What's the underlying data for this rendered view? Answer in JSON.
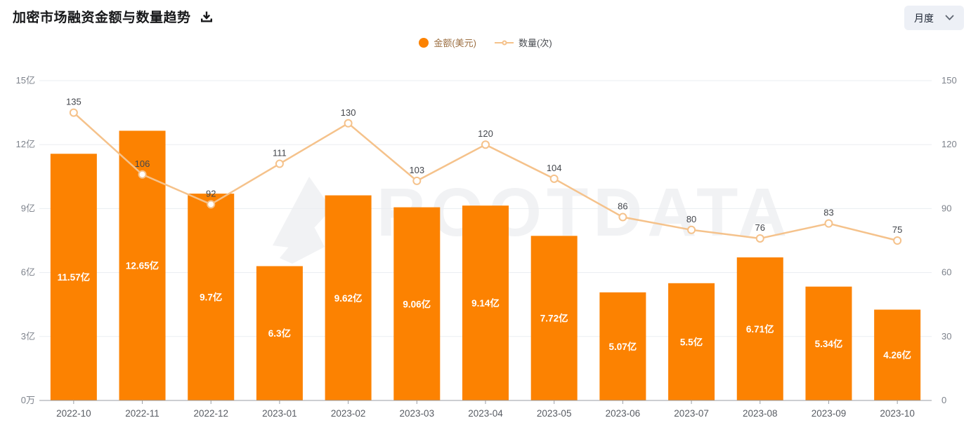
{
  "header": {
    "title": "加密市场融资金额与数量趋势",
    "period_selector": {
      "value": "月度"
    }
  },
  "legend": {
    "items": [
      {
        "label": "金额(美元)",
        "marker": "filled-circle",
        "color": "#fc8201",
        "label_color": "#9c6f42"
      },
      {
        "label": "数量(次)",
        "marker": "line-hollow-circle",
        "color": "#f5c28b",
        "label_color": "#4a4d52"
      }
    ]
  },
  "chart_data": {
    "type": "combo-bar-line",
    "title": "加密市场融资金额与数量趋势",
    "categories": [
      "2022-10",
      "2022-11",
      "2022-12",
      "2023-01",
      "2023-02",
      "2023-03",
      "2023-04",
      "2023-05",
      "2023-06",
      "2023-07",
      "2023-08",
      "2023-09",
      "2023-10"
    ],
    "series": [
      {
        "name": "金额(美元)",
        "type": "bar",
        "axis": "left",
        "color": "#fc8201",
        "label_color": "#ffffff",
        "values": [
          11.57,
          12.65,
          9.7,
          6.3,
          9.62,
          9.06,
          9.14,
          7.72,
          5.07,
          5.5,
          6.71,
          5.34,
          4.26
        ],
        "labels": [
          "11.57亿",
          "12.65亿",
          "9.7亿",
          "6.3亿",
          "9.62亿",
          "9.06亿",
          "9.14亿",
          "7.72亿",
          "5.07亿",
          "5.5亿",
          "6.71亿",
          "5.34亿",
          "4.26亿"
        ]
      },
      {
        "name": "数量(次)",
        "type": "line",
        "axis": "right",
        "color": "#f5c28b",
        "marker": "hollow-circle",
        "point_label_color": "#43464c",
        "values": [
          135,
          106,
          92,
          111,
          130,
          103,
          120,
          104,
          86,
          80,
          76,
          83,
          75
        ]
      }
    ],
    "left_axis": {
      "min": 0,
      "max": 15,
      "ticks": [
        "0万",
        "3亿",
        "6亿",
        "9亿",
        "12亿",
        "15亿"
      ],
      "label_color": "#7e838c"
    },
    "right_axis": {
      "min": 0,
      "max": 150,
      "ticks": [
        "0",
        "30",
        "60",
        "90",
        "120",
        "150"
      ],
      "label_color": "#7e838c"
    },
    "x_axis": {
      "label_color": "#585c63",
      "line_color": "#9a9ea5"
    },
    "grid": true,
    "grid_color": "#eaedf1",
    "legend_position": "top-center",
    "watermark": "ROOTDATA",
    "watermark_color": "#f1f2f4"
  }
}
